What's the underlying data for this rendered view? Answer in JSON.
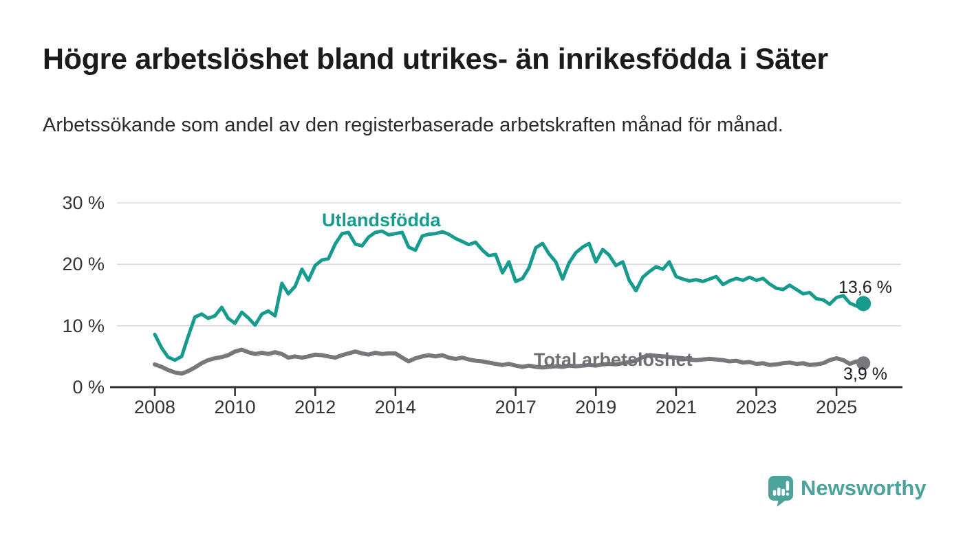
{
  "header": {
    "title": "Högre arbetslöshet bland utrikes- än inrikesfödda i Säter",
    "subtitle": "Arbetssökande som andel av den registerbaserade arbetskraften månad för månad."
  },
  "chart_data": {
    "type": "line",
    "title": "Högre arbetslöshet bland utrikes- än inrikesfödda i Säter",
    "subtitle": "Arbetssökande som andel av den registerbaserade arbetskraften månad för månad.",
    "grid": "horizontal",
    "legend_position": "inline-labels",
    "ylim": [
      0,
      31
    ],
    "xlim": [
      2007.05,
      2026.6
    ],
    "y_ticks": [
      {
        "value": 0,
        "label": "0 %"
      },
      {
        "value": 10,
        "label": "10 %"
      },
      {
        "value": 20,
        "label": "20 %"
      },
      {
        "value": 30,
        "label": "30 %"
      }
    ],
    "x_ticks": [
      {
        "value": 2008,
        "label": "2008"
      },
      {
        "value": 2010,
        "label": "2010"
      },
      {
        "value": 2012,
        "label": "2012"
      },
      {
        "value": 2014,
        "label": "2014"
      },
      {
        "value": 2017,
        "label": "2017"
      },
      {
        "value": 2019,
        "label": "2019"
      },
      {
        "value": 2021,
        "label": "2021"
      },
      {
        "value": 2023,
        "label": "2023"
      },
      {
        "value": 2025,
        "label": "2025"
      }
    ],
    "x": [
      2008,
      2008.17,
      2008.33,
      2008.5,
      2008.67,
      2008.83,
      2009,
      2009.17,
      2009.33,
      2009.5,
      2009.67,
      2009.83,
      2010,
      2010.17,
      2010.33,
      2010.5,
      2010.67,
      2010.83,
      2011,
      2011.17,
      2011.33,
      2011.5,
      2011.67,
      2011.83,
      2012,
      2012.17,
      2012.33,
      2012.5,
      2012.67,
      2012.83,
      2013,
      2013.17,
      2013.33,
      2013.5,
      2013.67,
      2013.83,
      2014,
      2014.17,
      2014.33,
      2014.5,
      2014.67,
      2014.83,
      2015,
      2015.17,
      2015.33,
      2015.5,
      2015.67,
      2015.83,
      2016,
      2016.17,
      2016.33,
      2016.5,
      2016.67,
      2016.83,
      2017,
      2017.17,
      2017.33,
      2017.5,
      2017.67,
      2017.83,
      2018,
      2018.17,
      2018.33,
      2018.5,
      2018.67,
      2018.83,
      2019,
      2019.17,
      2019.33,
      2019.5,
      2019.67,
      2019.83,
      2020,
      2020.17,
      2020.33,
      2020.5,
      2020.67,
      2020.83,
      2021,
      2021.17,
      2021.33,
      2021.5,
      2021.67,
      2021.83,
      2022,
      2022.17,
      2022.33,
      2022.5,
      2022.67,
      2022.83,
      2023,
      2023.17,
      2023.33,
      2023.5,
      2023.67,
      2023.83,
      2024,
      2024.17,
      2024.33,
      2024.5,
      2024.67,
      2024.83,
      2025,
      2025.17,
      2025.33,
      2025.5,
      2025.67
    ],
    "series": [
      {
        "name": "Utlandsfödda",
        "color": "#169b8e",
        "end_value_label": "13,6 %",
        "end_value": 13.6,
        "values": [
          8.6,
          6.4,
          4.9,
          4.4,
          5.0,
          8.2,
          11.4,
          11.9,
          11.2,
          11.6,
          13.0,
          11.2,
          10.4,
          12.2,
          11.3,
          10.1,
          11.9,
          12.4,
          11.6,
          16.9,
          15.2,
          16.4,
          19.2,
          17.4,
          19.8,
          20.7,
          20.9,
          23.3,
          25.0,
          25.2,
          23.3,
          23.0,
          24.4,
          25.2,
          25.4,
          24.8,
          25.0,
          25.2,
          22.8,
          22.3,
          24.6,
          24.9,
          25.0,
          25.3,
          24.9,
          24.2,
          23.7,
          23.2,
          23.6,
          22.3,
          21.4,
          21.6,
          18.6,
          20.4,
          17.2,
          17.7,
          19.4,
          22.7,
          23.4,
          21.7,
          20.4,
          17.6,
          20.2,
          21.9,
          22.8,
          23.4,
          20.4,
          22.4,
          21.5,
          19.8,
          20.4,
          17.4,
          15.7,
          17.9,
          18.8,
          19.6,
          19.2,
          20.4,
          18.0,
          17.6,
          17.3,
          17.5,
          17.2,
          17.6,
          18.0,
          16.7,
          17.3,
          17.7,
          17.4,
          17.9,
          17.4,
          17.7,
          16.8,
          16.1,
          15.9,
          16.6,
          15.9,
          15.2,
          15.4,
          14.4,
          14.2,
          13.5,
          14.6,
          14.9,
          13.7,
          13.2,
          13.6
        ]
      },
      {
        "name": "Total arbetslöshet",
        "color": "#78787c",
        "end_value_label": "3,9 %",
        "end_value": 3.9,
        "values": [
          3.7,
          3.3,
          2.8,
          2.4,
          2.2,
          2.6,
          3.2,
          3.9,
          4.4,
          4.7,
          4.9,
          5.2,
          5.8,
          6.1,
          5.7,
          5.4,
          5.6,
          5.4,
          5.7,
          5.4,
          4.8,
          5.0,
          4.8,
          5.0,
          5.3,
          5.2,
          5.0,
          4.8,
          5.2,
          5.5,
          5.8,
          5.5,
          5.3,
          5.6,
          5.4,
          5.5,
          5.5,
          4.8,
          4.2,
          4.7,
          5.0,
          5.2,
          5.0,
          5.2,
          4.8,
          4.6,
          4.8,
          4.5,
          4.3,
          4.2,
          4.0,
          3.8,
          3.6,
          3.8,
          3.5,
          3.3,
          3.5,
          3.3,
          3.2,
          3.3,
          3.4,
          3.3,
          3.5,
          3.4,
          3.5,
          3.6,
          3.5,
          3.7,
          3.8,
          3.7,
          3.9,
          4.1,
          4.3,
          4.9,
          5.2,
          5.1,
          5.0,
          4.9,
          4.8,
          4.7,
          4.5,
          4.4,
          4.5,
          4.6,
          4.5,
          4.4,
          4.2,
          4.3,
          4.0,
          4.1,
          3.8,
          3.9,
          3.6,
          3.7,
          3.9,
          4.0,
          3.8,
          3.9,
          3.6,
          3.7,
          3.9,
          4.4,
          4.7,
          4.4,
          3.8,
          4.2,
          3.9
        ]
      }
    ],
    "colors": {
      "accent_teal": "#169b8e",
      "neutral_gray": "#78787c",
      "gridline": "#d8d8d8",
      "axis": "#2f2f2f",
      "text": "#1b1b1b"
    }
  },
  "footer": {
    "brand": "Newsworthy",
    "brand_color": "#4ba39b"
  }
}
